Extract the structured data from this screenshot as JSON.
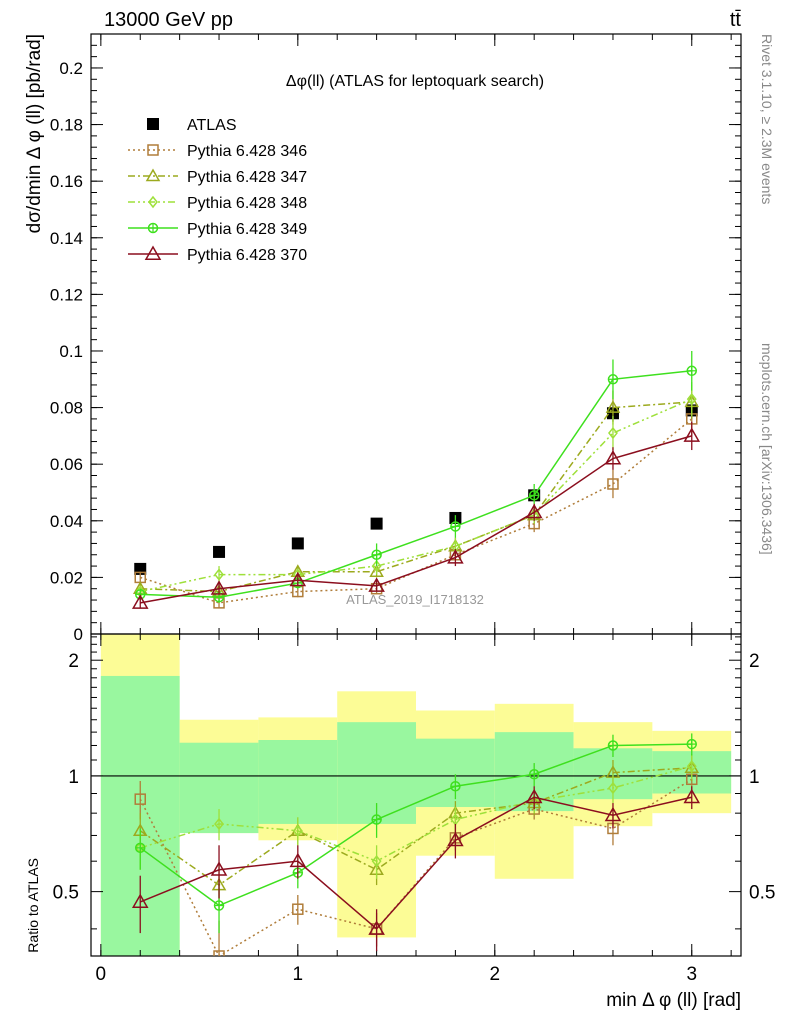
{
  "header": {
    "energy_label": "13000 GeV pp",
    "process_label": "tt̄",
    "side_label_top": "Rivet 3.1.10, ≥ 2.3M events",
    "side_label_bottom": "mcplots.cern.ch [arXiv:1306.3436]",
    "analysis_id": "ATLAS_2019_I1718132"
  },
  "colors": {
    "atlas": "#000000",
    "p346": "#b07d3a",
    "p347": "#9caa1e",
    "p348": "#9ee03a",
    "p349": "#3ee01e",
    "p370": "#8b0e1e",
    "band_inner": "#99f79f",
    "band_outer": "#fcfc96"
  },
  "chart_data": [
    {
      "type": "scatter",
      "title": "Δφ(ll) (ATLAS for leptoquark search)",
      "xlabel": "min Δ φ (ll) [rad]",
      "ylabel": "dσ/dmin Δ φ (ll) [pb/rad]",
      "xlim": [
        -0.05,
        3.25
      ],
      "ylim": [
        0,
        0.212
      ],
      "yticks": [
        "0",
        "0.02",
        "0.04",
        "0.06",
        "0.08",
        "0.1",
        "0.12",
        "0.14",
        "0.16",
        "0.18",
        "0.2"
      ],
      "legend_position": "top-left",
      "x": [
        0.2,
        0.6,
        1.0,
        1.4,
        1.8,
        2.2,
        2.6,
        3.0
      ],
      "series": [
        {
          "key": "atlas",
          "name": "ATLAS",
          "values": [
            0.023,
            0.029,
            0.032,
            0.039,
            0.041,
            0.049,
            0.078,
            0.079
          ],
          "errors": [
            0.001,
            0.001,
            0.001,
            0.001,
            0.002,
            0.002,
            0.003,
            0.003
          ]
        },
        {
          "key": "p346",
          "name": "Pythia 6.428 346",
          "values": [
            0.02,
            0.011,
            0.015,
            0.016,
            0.028,
            0.039,
            0.053,
            0.076
          ],
          "errors": [
            0.002,
            0.002,
            0.002,
            0.002,
            0.002,
            0.003,
            0.005,
            0.006
          ]
        },
        {
          "key": "p347",
          "name": "Pythia 6.428 347",
          "values": [
            0.016,
            0.015,
            0.022,
            0.022,
            0.031,
            0.042,
            0.08,
            0.082
          ],
          "errors": [
            0.002,
            0.002,
            0.002,
            0.002,
            0.003,
            0.003,
            0.006,
            0.006
          ]
        },
        {
          "key": "p348",
          "name": "Pythia 6.428 348",
          "values": [
            0.015,
            0.021,
            0.021,
            0.024,
            0.031,
            0.042,
            0.071,
            0.083
          ],
          "errors": [
            0.002,
            0.003,
            0.002,
            0.003,
            0.003,
            0.003,
            0.006,
            0.006
          ]
        },
        {
          "key": "p349",
          "name": "Pythia 6.428 349",
          "values": [
            0.014,
            0.013,
            0.018,
            0.028,
            0.038,
            0.049,
            0.09,
            0.093
          ],
          "errors": [
            0.002,
            0.002,
            0.002,
            0.004,
            0.004,
            0.004,
            0.007,
            0.007
          ]
        },
        {
          "key": "p370",
          "name": "Pythia 6.428 370",
          "values": [
            0.011,
            0.016,
            0.019,
            0.017,
            0.027,
            0.043,
            0.062,
            0.07
          ],
          "errors": [
            0.002,
            0.002,
            0.002,
            0.002,
            0.003,
            0.003,
            0.004,
            0.005
          ]
        }
      ]
    },
    {
      "type": "scatter",
      "ylabel": "Ratio to ATLAS",
      "xlabel": "min Δ φ (ll) [rad]",
      "xlim": [
        -0.05,
        3.25
      ],
      "ylim": [
        0.34,
        2.34
      ],
      "yticks": [
        "0.5",
        "1",
        "2"
      ],
      "xticks": [
        "0",
        "1",
        "2",
        "3"
      ],
      "reference_line": 1,
      "x": [
        0.2,
        0.6,
        1.0,
        1.4,
        1.8,
        2.2,
        2.6,
        3.0
      ],
      "bins": [
        [
          0.0,
          0.4
        ],
        [
          0.4,
          0.8
        ],
        [
          0.8,
          1.2
        ],
        [
          1.2,
          1.6
        ],
        [
          1.6,
          2.0
        ],
        [
          2.0,
          2.4
        ],
        [
          2.4,
          2.8
        ],
        [
          2.8,
          3.2
        ]
      ],
      "band_inner": [
        [
          0.34,
          1.82
        ],
        [
          0.71,
          1.22
        ],
        [
          0.75,
          1.24
        ],
        [
          0.75,
          1.38
        ],
        [
          0.83,
          1.25
        ],
        [
          0.81,
          1.3
        ],
        [
          0.87,
          1.18
        ],
        [
          0.9,
          1.16
        ]
      ],
      "band_outer": [
        [
          0.34,
          2.34
        ],
        [
          0.71,
          1.4
        ],
        [
          0.68,
          1.42
        ],
        [
          0.38,
          1.66
        ],
        [
          0.62,
          1.48
        ],
        [
          0.54,
          1.54
        ],
        [
          0.74,
          1.38
        ],
        [
          0.8,
          1.31
        ]
      ],
      "series": [
        {
          "key": "p346",
          "name": "Pythia 6.428 346",
          "values": [
            0.87,
            0.34,
            0.45,
            0.4,
            0.69,
            0.82,
            0.73,
            0.98
          ],
          "errors": [
            0.1,
            0.08,
            0.04,
            0.04,
            0.05,
            0.05,
            0.07,
            0.07
          ]
        },
        {
          "key": "p347",
          "name": "Pythia 6.428 347",
          "values": [
            0.72,
            0.52,
            0.72,
            0.57,
            0.8,
            0.85,
            1.02,
            1.05
          ],
          "errors": [
            0.08,
            0.07,
            0.06,
            0.05,
            0.06,
            0.06,
            0.08,
            0.08
          ]
        },
        {
          "key": "p348",
          "name": "Pythia 6.428 348",
          "values": [
            0.65,
            0.75,
            0.72,
            0.6,
            0.77,
            0.86,
            0.93,
            1.06
          ],
          "errors": [
            0.08,
            0.07,
            0.06,
            0.06,
            0.06,
            0.06,
            0.08,
            0.08
          ]
        },
        {
          "key": "p349",
          "name": "Pythia 6.428 349",
          "values": [
            0.65,
            0.46,
            0.56,
            0.77,
            0.94,
            1.01,
            1.2,
            1.21
          ],
          "errors": [
            0.08,
            0.07,
            0.05,
            0.08,
            0.07,
            0.07,
            0.08,
            0.08
          ]
        },
        {
          "key": "p370",
          "name": "Pythia 6.428 370",
          "values": [
            0.47,
            0.57,
            0.6,
            0.4,
            0.68,
            0.88,
            0.79,
            0.88
          ],
          "errors": [
            0.08,
            0.09,
            0.06,
            0.05,
            0.07,
            0.06,
            0.06,
            0.06
          ]
        }
      ]
    }
  ]
}
